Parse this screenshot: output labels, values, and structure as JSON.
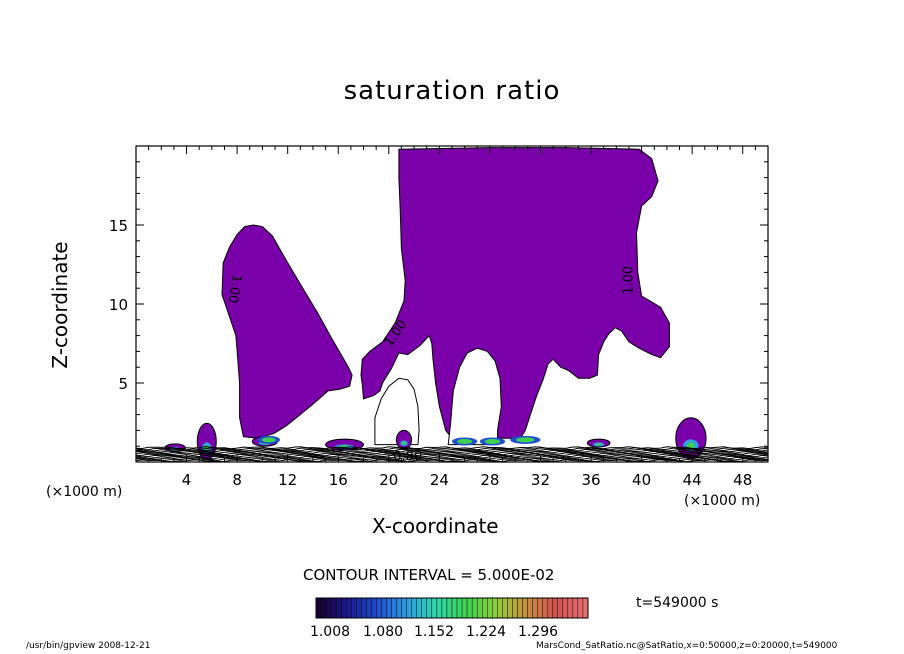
{
  "chart_data": {
    "type": "heatmap",
    "title": "saturation ratio",
    "xlabel": "X-coordinate",
    "ylabel": "Z-coordinate",
    "x_unit_label": "(×1000 m)",
    "xlim": [
      0,
      50
    ],
    "ylim": [
      0,
      20
    ],
    "x_ticks": [
      4,
      8,
      12,
      16,
      20,
      24,
      28,
      32,
      36,
      40,
      44,
      48
    ],
    "y_ticks": [
      5,
      10,
      15
    ],
    "contour_interval_label": "CONTOUR INTERVAL = 5.000E-02",
    "contour_labels": [
      {
        "text": "1.00",
        "x": 7.5,
        "z": 11.0
      },
      {
        "text": "1.00",
        "x": 20.8,
        "z": 8.0
      },
      {
        "text": "1.00",
        "x": 39.3,
        "z": 11.5
      },
      {
        "text": "0.80",
        "x": 21.5,
        "z": 0.1
      }
    ],
    "supersaturated_regions": [
      {
        "name": "plume-left",
        "polygon": [
          [
            6.8,
            10.6
          ],
          [
            6.9,
            12.6
          ],
          [
            7.4,
            13.6
          ],
          [
            8.0,
            14.4
          ],
          [
            8.6,
            14.9
          ],
          [
            9.3,
            15.0
          ],
          [
            10.0,
            14.9
          ],
          [
            10.8,
            14.3
          ],
          [
            11.5,
            13.3
          ],
          [
            12.3,
            12.2
          ],
          [
            13.2,
            11.0
          ],
          [
            14.4,
            9.4
          ],
          [
            15.5,
            7.8
          ],
          [
            16.3,
            6.7
          ],
          [
            16.8,
            6.0
          ],
          [
            17.1,
            5.5
          ],
          [
            16.9,
            4.8
          ],
          [
            16.1,
            4.6
          ],
          [
            15.2,
            4.5
          ],
          [
            14.2,
            3.8
          ],
          [
            13.0,
            3.0
          ],
          [
            11.9,
            2.3
          ],
          [
            10.9,
            1.8
          ],
          [
            9.6,
            1.5
          ],
          [
            8.5,
            1.6
          ],
          [
            8.2,
            2.8
          ],
          [
            8.2,
            5.0
          ],
          [
            7.9,
            8.0
          ]
        ]
      },
      {
        "name": "plume-right",
        "polygon": [
          [
            20.8,
            19.8
          ],
          [
            28.0,
            19.9
          ],
          [
            34.0,
            19.9
          ],
          [
            39.8,
            19.8
          ],
          [
            40.8,
            19.2
          ],
          [
            41.3,
            17.8
          ],
          [
            40.8,
            16.8
          ],
          [
            40.0,
            16.2
          ],
          [
            39.6,
            14.5
          ],
          [
            39.7,
            12.0
          ],
          [
            40.0,
            10.5
          ],
          [
            41.5,
            9.8
          ],
          [
            42.2,
            8.8
          ],
          [
            42.2,
            7.3
          ],
          [
            41.5,
            6.6
          ],
          [
            40.8,
            6.8
          ],
          [
            39.8,
            7.2
          ],
          [
            39.0,
            7.6
          ],
          [
            38.4,
            8.3
          ],
          [
            37.9,
            8.5
          ],
          [
            37.4,
            8.1
          ],
          [
            37.0,
            7.6
          ],
          [
            36.6,
            6.8
          ],
          [
            36.5,
            5.5
          ],
          [
            35.9,
            5.3
          ],
          [
            35.0,
            5.3
          ],
          [
            34.2,
            5.8
          ],
          [
            33.6,
            6.0
          ],
          [
            33.0,
            6.5
          ],
          [
            32.6,
            6.2
          ],
          [
            32.2,
            5.2
          ],
          [
            31.7,
            4.2
          ],
          [
            31.2,
            3.0
          ],
          [
            30.8,
            2.0
          ],
          [
            30.4,
            1.5
          ],
          [
            29.8,
            1.5
          ],
          [
            25.0,
            1.5
          ],
          [
            24.5,
            2.0
          ],
          [
            24.0,
            3.5
          ],
          [
            23.7,
            5.0
          ],
          [
            23.5,
            6.5
          ],
          [
            23.4,
            7.5
          ],
          [
            23.2,
            8.0
          ],
          [
            22.5,
            7.4
          ],
          [
            21.5,
            6.8
          ],
          [
            20.8,
            6.9
          ],
          [
            20.2,
            5.9
          ],
          [
            19.8,
            5.4
          ],
          [
            19.5,
            5.0
          ],
          [
            19.3,
            4.5
          ],
          [
            18.8,
            4.2
          ],
          [
            18.0,
            4.0
          ],
          [
            17.9,
            4.9
          ],
          [
            17.8,
            5.5
          ],
          [
            17.9,
            6.5
          ],
          [
            18.5,
            7.0
          ],
          [
            19.5,
            7.6
          ],
          [
            20.5,
            8.8
          ],
          [
            21.2,
            10.2
          ],
          [
            21.3,
            11.5
          ],
          [
            21.0,
            13.5
          ],
          [
            20.9,
            16.0
          ],
          [
            20.8,
            18.0
          ]
        ]
      }
    ],
    "cavities": [
      {
        "name": "cavity-left",
        "polygon": [
          [
            18.9,
            1.1
          ],
          [
            18.9,
            2.8
          ],
          [
            19.4,
            4.0
          ],
          [
            20.0,
            4.8
          ],
          [
            20.8,
            5.3
          ],
          [
            21.5,
            5.2
          ],
          [
            22.0,
            4.6
          ],
          [
            22.3,
            3.5
          ],
          [
            22.4,
            2.0
          ],
          [
            22.3,
            1.1
          ]
        ]
      },
      {
        "name": "cavity-mid",
        "polygon": [
          [
            24.7,
            1.1
          ],
          [
            24.9,
            2.5
          ],
          [
            25.1,
            4.5
          ],
          [
            25.6,
            6.0
          ],
          [
            26.2,
            6.9
          ],
          [
            27.0,
            7.2
          ],
          [
            27.8,
            7.0
          ],
          [
            28.4,
            6.4
          ],
          [
            28.8,
            5.3
          ],
          [
            28.9,
            3.5
          ],
          [
            28.6,
            2.0
          ],
          [
            28.6,
            1.1
          ]
        ]
      }
    ],
    "small_cells": [
      {
        "x": 5.6,
        "z": 1.3,
        "w": 1.5,
        "h": 2.3
      },
      {
        "x": 3.1,
        "z": 0.9,
        "w": 1.6,
        "h": 0.5
      },
      {
        "x": 10.2,
        "z": 1.3,
        "w": 2.0,
        "h": 0.6
      },
      {
        "x": 21.2,
        "z": 1.4,
        "w": 1.2,
        "h": 1.2
      },
      {
        "x": 16.5,
        "z": 1.1,
        "w": 3.0,
        "h": 0.7
      },
      {
        "x": 36.6,
        "z": 1.2,
        "w": 1.8,
        "h": 0.5
      },
      {
        "x": 43.9,
        "z": 1.5,
        "w": 2.4,
        "h": 2.6
      }
    ],
    "colorbar": {
      "tick_labels": [
        "1.008",
        "1.080",
        "1.152",
        "1.224",
        "1.296"
      ],
      "colors": [
        "#1a0033",
        "#1a1a8c",
        "#1f4fd0",
        "#2f9fe0",
        "#2fd8a8",
        "#3fd050",
        "#8fd040",
        "#c89040",
        "#d05050",
        "#e87070"
      ]
    },
    "time_label": "t=549000  s",
    "colors": {
      "supersaturated": "#7a00aa",
      "contour_line": "#000000",
      "frame": "#000000"
    }
  },
  "footer": {
    "left": "/usr/bin/gpview   2008-12-21",
    "right": "MarsCond_SatRatio.nc@SatRatio,x=0:50000,z=0:20000,t=549000"
  }
}
